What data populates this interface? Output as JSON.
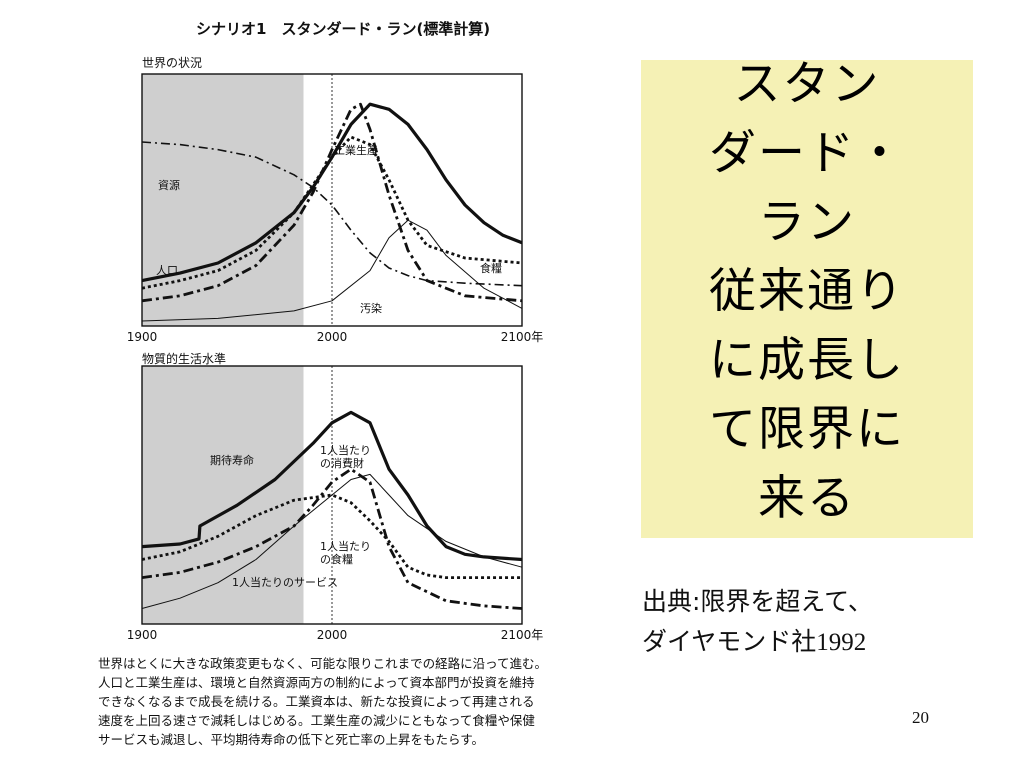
{
  "figure": {
    "title": "シナリオ1　スタンダード・ラン(標準計算)",
    "caption_lines": [
      "世界はとくに大きな政策変更もなく、可能な限りこれまでの経路に沿って進む。",
      "人口と工業生産は、環境と自然資源両方の制約によって資本部門が投資を維持",
      "できなくなるまで成長を続ける。工業資本は、新たな投資によって再建される",
      "速度を上回る速さで減耗しはじめる。工業生産の減少にともなって食糧や保健",
      "サービスも減退し、平均期待寿命の低下と死亡率の上昇をもたらす。"
    ]
  },
  "slide": {
    "title_lines": [
      "スタン",
      "ダード・",
      "ラン",
      "従来通り",
      "に成長し",
      "て限界に",
      "来る"
    ],
    "source_text": "出典:限界を超えて、",
    "source_publisher": "ダイヤモンド社",
    "source_year": "1992",
    "page_number": "20",
    "colors": {
      "title_box": "#f5f1b5",
      "history_shade": "#cfcfcf"
    }
  },
  "chart_data": [
    {
      "type": "line",
      "title": "世界の状況",
      "x_tick_labels": [
        "1900",
        "2000",
        "2100年"
      ],
      "xlim": [
        1900,
        2100
      ],
      "shaded_history_until": 1985,
      "reference_line": 2000,
      "y_axis": "unlabeled relative scale",
      "series": [
        {
          "name": "資源",
          "style": "dash-dot",
          "x": [
            1900,
            1920,
            1940,
            1960,
            1980,
            1990,
            2000,
            2010,
            2020,
            2030,
            2040,
            2050,
            2070,
            2100
          ],
          "y": [
            0.73,
            0.72,
            0.7,
            0.67,
            0.6,
            0.55,
            0.48,
            0.38,
            0.29,
            0.23,
            0.2,
            0.18,
            0.17,
            0.16
          ]
        },
        {
          "name": "人口",
          "style": "thick-solid",
          "x": [
            1900,
            1920,
            1940,
            1960,
            1980,
            1990,
            2000,
            2010,
            2020,
            2030,
            2040,
            2050,
            2060,
            2070,
            2080,
            2090,
            2100
          ],
          "y": [
            0.18,
            0.21,
            0.25,
            0.33,
            0.45,
            0.55,
            0.67,
            0.8,
            0.88,
            0.86,
            0.8,
            0.7,
            0.58,
            0.48,
            0.41,
            0.36,
            0.33
          ]
        },
        {
          "name": "工業生産",
          "style": "dash-dot-thick",
          "x": [
            1900,
            1920,
            1940,
            1960,
            1980,
            1990,
            2000,
            2010,
            2015,
            2020,
            2030,
            2040,
            2050,
            2070,
            2100
          ],
          "y": [
            0.1,
            0.12,
            0.16,
            0.24,
            0.4,
            0.53,
            0.7,
            0.86,
            0.88,
            0.78,
            0.52,
            0.3,
            0.18,
            0.12,
            0.1
          ]
        },
        {
          "name": "食糧",
          "style": "dotted",
          "x": [
            1900,
            1920,
            1940,
            1960,
            1980,
            1990,
            2000,
            2010,
            2020,
            2030,
            2040,
            2050,
            2070,
            2100
          ],
          "y": [
            0.15,
            0.18,
            0.22,
            0.3,
            0.45,
            0.56,
            0.67,
            0.75,
            0.72,
            0.58,
            0.42,
            0.32,
            0.27,
            0.25
          ]
        },
        {
          "name": "汚染",
          "style": "thin-solid",
          "x": [
            1900,
            1940,
            1980,
            2000,
            2020,
            2030,
            2040,
            2050,
            2060,
            2080,
            2100
          ],
          "y": [
            0.02,
            0.03,
            0.06,
            0.1,
            0.22,
            0.35,
            0.42,
            0.38,
            0.28,
            0.15,
            0.07
          ]
        }
      ]
    },
    {
      "type": "line",
      "title": "物質的生活水準",
      "x_tick_labels": [
        "1900",
        "2000",
        "2100年"
      ],
      "xlim": [
        1900,
        2100
      ],
      "shaded_history_until": 1985,
      "reference_line": 2000,
      "y_axis": "unlabeled relative scale",
      "series": [
        {
          "name": "期待寿命",
          "style": "thick-solid",
          "x": [
            1900,
            1920,
            1930,
            1930.5,
            1950,
            1970,
            1990,
            2000,
            2010,
            2020,
            2030,
            2040,
            2050,
            2060,
            2070,
            2080,
            2100
          ],
          "y": [
            0.3,
            0.31,
            0.33,
            0.38,
            0.46,
            0.56,
            0.7,
            0.78,
            0.82,
            0.78,
            0.6,
            0.5,
            0.38,
            0.3,
            0.27,
            0.26,
            0.25
          ]
        },
        {
          "name": "1人当たりの消費財",
          "style": "dash-dot-thick",
          "x": [
            1900,
            1920,
            1940,
            1960,
            1980,
            1990,
            2000,
            2010,
            2020,
            2030,
            2040,
            2060,
            2080,
            2100
          ],
          "y": [
            0.18,
            0.2,
            0.24,
            0.3,
            0.38,
            0.46,
            0.55,
            0.6,
            0.55,
            0.3,
            0.16,
            0.09,
            0.07,
            0.06
          ]
        },
        {
          "name": "1人当たりの食糧",
          "style": "dotted",
          "x": [
            1900,
            1920,
            1940,
            1960,
            1980,
            2000,
            2010,
            2020,
            2030,
            2040,
            2050,
            2060,
            2080,
            2100
          ],
          "y": [
            0.25,
            0.28,
            0.34,
            0.42,
            0.48,
            0.5,
            0.47,
            0.4,
            0.32,
            0.22,
            0.19,
            0.18,
            0.18,
            0.18
          ]
        },
        {
          "name": "1人当たりのサービス",
          "style": "thin-solid",
          "x": [
            1900,
            1920,
            1940,
            1960,
            1980,
            2000,
            2010,
            2020,
            2030,
            2040,
            2060,
            2080,
            2100
          ],
          "y": [
            0.06,
            0.1,
            0.16,
            0.25,
            0.38,
            0.5,
            0.56,
            0.58,
            0.5,
            0.42,
            0.32,
            0.26,
            0.22
          ]
        }
      ]
    }
  ]
}
